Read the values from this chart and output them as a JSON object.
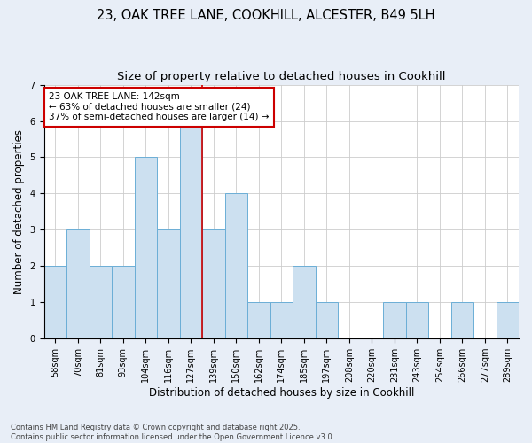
{
  "title_line1": "23, OAK TREE LANE, COOKHILL, ALCESTER, B49 5LH",
  "title_line2": "Size of property relative to detached houses in Cookhill",
  "xlabel": "Distribution of detached houses by size in Cookhill",
  "ylabel": "Number of detached properties",
  "footnote": "Contains HM Land Registry data © Crown copyright and database right 2025.\nContains public sector information licensed under the Open Government Licence v3.0.",
  "categories": [
    "58sqm",
    "70sqm",
    "81sqm",
    "93sqm",
    "104sqm",
    "116sqm",
    "127sqm",
    "139sqm",
    "150sqm",
    "162sqm",
    "174sqm",
    "185sqm",
    "197sqm",
    "208sqm",
    "220sqm",
    "231sqm",
    "243sqm",
    "254sqm",
    "266sqm",
    "277sqm",
    "289sqm"
  ],
  "values": [
    2,
    3,
    2,
    2,
    5,
    3,
    6,
    3,
    4,
    1,
    1,
    2,
    1,
    0,
    0,
    1,
    1,
    0,
    1,
    0,
    1
  ],
  "bar_color": "#cce0f0",
  "bar_edge_color": "#6baed6",
  "highlight_bar_index": 6,
  "highlight_line_color": "#cc0000",
  "annotation_text": "23 OAK TREE LANE: 142sqm\n← 63% of detached houses are smaller (24)\n37% of semi-detached houses are larger (14) →",
  "annotation_box_color": "white",
  "annotation_box_edge_color": "#cc0000",
  "ylim": [
    0,
    7
  ],
  "yticks": [
    0,
    1,
    2,
    3,
    4,
    5,
    6,
    7
  ],
  "background_color": "#e8eef7",
  "plot_background_color": "white",
  "grid_color": "#cccccc",
  "title_fontsize": 10.5,
  "subtitle_fontsize": 9.5,
  "axis_label_fontsize": 8.5,
  "tick_fontsize": 7,
  "annotation_fontsize": 7.5,
  "footnote_fontsize": 6
}
